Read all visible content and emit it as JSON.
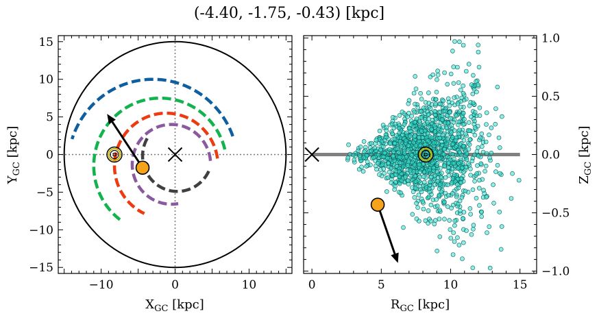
{
  "title": "(-4.40, -1.75, -0.43) [kpc]",
  "colors": {
    "arm_blue": "#0f5fa0",
    "arm_green": "#11b34d",
    "arm_red": "#ee3a10",
    "arm_purple": "#8a5a9e",
    "arm_gray": "#404040",
    "object": "#f5a31a",
    "stars": "#33e0d0",
    "sun_ring": "#c8b400",
    "disk": "#808080"
  },
  "chart_data": [
    {
      "type": "scatter",
      "panel": "left",
      "xlabel": "X",
      "xlabel_sub": "GC",
      "xlabel_unit": " [kpc]",
      "ylabel": "Y",
      "ylabel_sub": "GC",
      "ylabel_unit": " [kpc]",
      "xlim": [
        -15.8,
        15.8
      ],
      "ylim": [
        -15.8,
        15.8
      ],
      "xticks": [
        -10,
        0,
        10
      ],
      "xticklabels": [
        "−10",
        "0",
        "10"
      ],
      "yticks": [
        -15,
        -10,
        -5,
        0,
        5,
        10,
        15
      ],
      "yticklabels": [
        "−15",
        "−10",
        "−5",
        "0",
        "5",
        "10",
        "15"
      ],
      "boundary_circle_radius": 15,
      "galactic_center": [
        0,
        0
      ],
      "sun": [
        -8.2,
        0
      ],
      "object": {
        "x": -4.4,
        "y": -1.75
      },
      "velocity_arrow": {
        "from": [
          -4.4,
          -1.75
        ],
        "to": [
          -9.2,
          5.4
        ]
      },
      "spiral_arms": [
        {
          "color_key": "arm_blue",
          "radius": 11.5,
          "cx": -3.0,
          "cy": -1.5,
          "theta_start": 20,
          "theta_end": 162
        },
        {
          "color_key": "arm_green",
          "radius": 9.0,
          "cx": -2.0,
          "cy": -1.5,
          "theta_start": 14,
          "theta_end": 235
        },
        {
          "color_key": "arm_red",
          "radius": 7.0,
          "cx": -1.2,
          "cy": -1.5,
          "theta_start": 8,
          "theta_end": 245
        },
        {
          "color_key": "arm_purple",
          "radius": 5.3,
          "cx": -0.5,
          "cy": -1.3,
          "theta_start": 5,
          "theta_end": 280
        },
        {
          "color_key": "arm_gray",
          "radius": 4.7,
          "cx": 0.3,
          "cy": -0.2,
          "theta_start": 150,
          "theta_end": 335
        }
      ]
    },
    {
      "type": "scatter",
      "panel": "right",
      "xlabel": "R",
      "xlabel_sub": "GC",
      "xlabel_unit": " [kpc]",
      "ylabel": "Z",
      "ylabel_sub": "GC",
      "ylabel_unit": " [kpc]",
      "xlim": [
        -0.6,
        16.2
      ],
      "ylim": [
        -1.02,
        1.02
      ],
      "xticks": [
        0,
        5,
        10,
        15
      ],
      "xticklabels": [
        "0",
        "5",
        "10",
        "15"
      ],
      "yticks": [
        -1.0,
        -0.5,
        0.0,
        0.5,
        1.0
      ],
      "yticklabels": [
        "−1.0",
        "−0.5",
        "0.0",
        "0.5",
        "1.0"
      ],
      "galactic_center": [
        0,
        0
      ],
      "sun": [
        8.2,
        0
      ],
      "disk_line": {
        "x": [
          0,
          15
        ],
        "y": 0
      },
      "object": {
        "x": 4.74,
        "y": -0.43
      },
      "velocity_arrow": {
        "from": [
          4.74,
          -0.43
        ],
        "to": [
          6.2,
          -0.93
        ]
      },
      "star_cloud": {
        "count": 1400,
        "center_r": 8.4,
        "note": "cluster of stars around R 3–15 kpc, Z −1 to 1 kpc, flaring with radius"
      }
    }
  ]
}
